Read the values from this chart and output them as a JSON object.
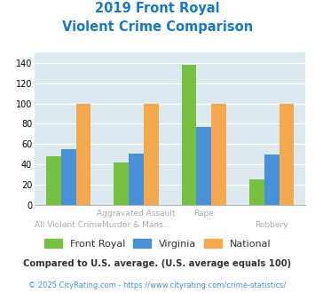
{
  "title_line1": "2019 Front Royal",
  "title_line2": "Violent Crime Comparison",
  "series": {
    "Front Royal": [
      48,
      42,
      138,
      25
    ],
    "Virginia": [
      55,
      51,
      77,
      50
    ],
    "National": [
      100,
      100,
      100,
      100
    ]
  },
  "colors": {
    "Front Royal": "#77c142",
    "Virginia": "#4a90d9",
    "National": "#f5a94f"
  },
  "ylim": [
    0,
    150
  ],
  "yticks": [
    0,
    20,
    40,
    60,
    80,
    100,
    120,
    140
  ],
  "xlabel_top": [
    "",
    "Aggravated Assault",
    "Rape",
    ""
  ],
  "xlabel_bottom": [
    "All Violent Crime",
    "Murder & Mans...",
    "",
    "Robbery"
  ],
  "footnote1": "Compared to U.S. average. (U.S. average equals 100)",
  "footnote2": "© 2025 CityRating.com - https://www.cityrating.com/crime-statistics/",
  "bg_color": "#dce9f0",
  "title_color": "#1a7abf",
  "footnote1_color": "#333333",
  "footnote2_color": "#4a90d9",
  "xlabel_color": "#aaaaaa"
}
